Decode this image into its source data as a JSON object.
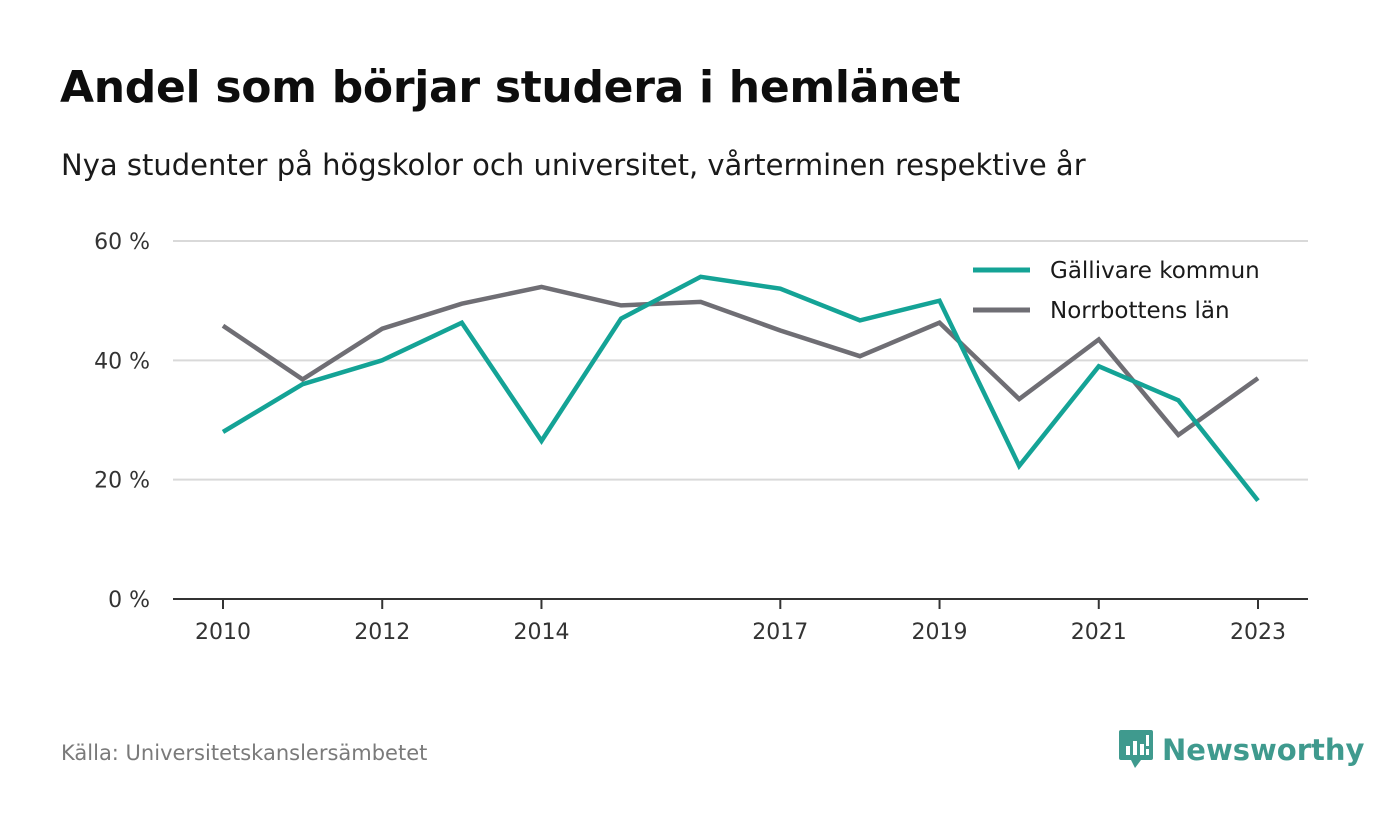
{
  "title": "Andel som börjar studera i hemlänet",
  "subtitle": "Nya studenter på högskolor och universitet, vårterminen respektive år",
  "source": "Källa: Universitetskanslersämbetet",
  "brand": {
    "name": "Newsworthy",
    "icon": "newsworthy-logo-icon",
    "color": "#3f9a8e"
  },
  "chart_data": {
    "type": "line",
    "x": [
      2010,
      2011,
      2012,
      2013,
      2014,
      2015,
      2016,
      2017,
      2018,
      2019,
      2020,
      2021,
      2022,
      2023
    ],
    "x_ticks": [
      2010,
      2012,
      2014,
      2017,
      2019,
      2021,
      2023
    ],
    "x_tick_labels": [
      "2010",
      "2012",
      "2014",
      "2017",
      "2019",
      "2021",
      "2023"
    ],
    "y_ticks": [
      0,
      20,
      40,
      60
    ],
    "y_tick_labels": [
      "0 %",
      "20 %",
      "40 %",
      "60 %"
    ],
    "ylim": [
      0,
      60
    ],
    "grid": "horizontal",
    "legend_position": "top-right",
    "series": [
      {
        "name": "Gällivare kommun",
        "color": "#14a396",
        "values": [
          28,
          36,
          40,
          46.3,
          26.5,
          47,
          54,
          52,
          46.7,
          50,
          22.3,
          39,
          33.3,
          16.5
        ]
      },
      {
        "name": "Norrbottens län",
        "color": "#6f6e74",
        "values": [
          45.8,
          36.8,
          45.3,
          49.5,
          52.3,
          49.2,
          49.8,
          45,
          40.7,
          46.3,
          33.5,
          43.5,
          27.5,
          37
        ]
      }
    ]
  }
}
